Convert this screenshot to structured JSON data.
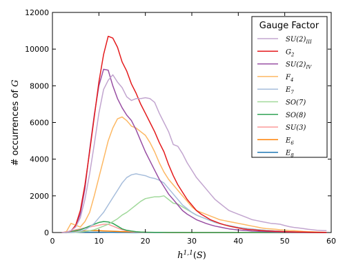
{
  "chart_data": {
    "type": "line",
    "xlabel": "h^{1,1}(S)",
    "ylabel": "# occurrences of G",
    "xlim": [
      0,
      60
    ],
    "ylim": [
      0,
      12000
    ],
    "x_ticks": [
      0,
      10,
      20,
      30,
      40,
      50,
      60
    ],
    "y_ticks": [
      0,
      2000,
      4000,
      6000,
      8000,
      10000,
      12000
    ],
    "grid": false,
    "legend": {
      "title": "Gauge Factor",
      "placement": "top-right"
    },
    "x": [
      2,
      3,
      4,
      5,
      6,
      7,
      8,
      9,
      10,
      11,
      12,
      13,
      14,
      15,
      16,
      17,
      18,
      19,
      20,
      21,
      22,
      23,
      24,
      25,
      26,
      27,
      28,
      29,
      30,
      31,
      32,
      33,
      34,
      35,
      36,
      37,
      38,
      39,
      40,
      41,
      42,
      43,
      44,
      45,
      46,
      47,
      48,
      49,
      50,
      51,
      52,
      53,
      54,
      55,
      56,
      57,
      58,
      59
    ],
    "series": [
      {
        "name": "SU(2)_III",
        "color": "#c2a5cf",
        "values": [
          0,
          20,
          100,
          300,
          800,
          1800,
          3200,
          4800,
          6500,
          7800,
          8300,
          8600,
          8200,
          7900,
          7400,
          7200,
          7300,
          7300,
          7350,
          7300,
          7100,
          6500,
          6000,
          5500,
          4800,
          4700,
          4300,
          3800,
          3400,
          3000,
          2700,
          2400,
          2100,
          1800,
          1600,
          1400,
          1200,
          1100,
          1000,
          900,
          800,
          700,
          650,
          600,
          550,
          500,
          480,
          450,
          380,
          320,
          280,
          250,
          220,
          180,
          150,
          120,
          110,
          100
        ]
      },
      {
        "name": "G_2",
        "color": "#e41a1c",
        "values": [
          0,
          20,
          80,
          400,
          1200,
          2600,
          4400,
          6300,
          8200,
          9700,
          10700,
          10600,
          10100,
          9300,
          8800,
          8100,
          7600,
          7000,
          6500,
          6000,
          5500,
          4900,
          4400,
          3700,
          3100,
          2600,
          2200,
          1800,
          1500,
          1200,
          1000,
          850,
          700,
          600,
          500,
          420,
          350,
          300,
          250,
          200,
          170,
          150,
          130,
          110,
          90,
          80,
          70,
          60,
          50,
          40,
          35,
          30,
          25,
          20,
          15,
          10,
          8,
          5
        ]
      },
      {
        "name": "SU(2)_IV",
        "color": "#984ea3",
        "values": [
          0,
          20,
          100,
          350,
          1000,
          2400,
          4500,
          6400,
          8000,
          8900,
          8850,
          8000,
          7300,
          6800,
          6400,
          6100,
          5600,
          5000,
          4400,
          3900,
          3400,
          2900,
          2500,
          2100,
          1800,
          1500,
          1200,
          1000,
          850,
          700,
          600,
          500,
          420,
          350,
          300,
          250,
          200,
          170,
          140,
          120,
          100,
          80,
          70,
          60,
          50,
          40,
          30,
          25,
          20,
          15,
          10,
          8,
          5,
          4,
          3,
          2,
          1,
          0
        ]
      },
      {
        "name": "F_4",
        "color": "#fdb863",
        "values": [
          0,
          50,
          500,
          400,
          300,
          600,
          1100,
          2000,
          3000,
          4000,
          5000,
          5700,
          6200,
          6300,
          6100,
          5800,
          5700,
          5500,
          5300,
          4900,
          4400,
          3800,
          3300,
          2900,
          2600,
          2300,
          2000,
          1700,
          1400,
          1200,
          1100,
          1000,
          900,
          800,
          700,
          650,
          600,
          550,
          500,
          450,
          400,
          350,
          300,
          250,
          220,
          200,
          180,
          150,
          130,
          110,
          100,
          80,
          60,
          50,
          40,
          30,
          20,
          10
        ]
      },
      {
        "name": "E_7",
        "color": "#a6bddb",
        "values": [
          0,
          0,
          10,
          30,
          80,
          150,
          300,
          500,
          800,
          1100,
          1500,
          1900,
          2300,
          2700,
          3000,
          3150,
          3200,
          3150,
          3100,
          3000,
          2950,
          2850,
          2700,
          2400,
          2100,
          1800,
          1500,
          1300,
          1100,
          950,
          850,
          750,
          650,
          550,
          480,
          420,
          380,
          330,
          280,
          250,
          220,
          190,
          160,
          140,
          120,
          100,
          80,
          70,
          60,
          50,
          40,
          30,
          25,
          20,
          15,
          10,
          8,
          5
        ]
      },
      {
        "name": "SO(7)",
        "color": "#a1d99b",
        "values": [
          0,
          0,
          0,
          10,
          30,
          60,
          100,
          150,
          250,
          350,
          450,
          600,
          750,
          950,
          1100,
          1300,
          1500,
          1700,
          1850,
          1900,
          1950,
          1950,
          2000,
          1800,
          1600,
          1550,
          1400,
          1250,
          1100,
          950,
          850,
          750,
          650,
          550,
          480,
          420,
          380,
          330,
          280,
          250,
          220,
          190,
          160,
          140,
          120,
          100,
          80,
          70,
          60,
          50,
          40,
          30,
          25,
          20,
          15,
          10,
          8,
          5
        ]
      },
      {
        "name": "SO(8)",
        "color": "#31a354",
        "values": [
          0,
          0,
          50,
          100,
          150,
          250,
          350,
          450,
          550,
          600,
          580,
          500,
          350,
          200,
          120,
          80,
          50,
          30,
          20,
          15,
          10,
          8,
          6,
          5,
          4,
          3,
          2,
          1,
          0,
          0,
          0,
          0,
          0,
          0,
          0,
          0,
          0,
          0,
          0,
          0,
          0,
          0,
          0,
          0,
          0,
          0,
          0,
          0,
          0,
          0,
          0,
          0,
          0,
          0,
          0,
          0,
          0,
          0
        ]
      },
      {
        "name": "SU(3)",
        "color": "#fb9a99",
        "values": [
          0,
          10,
          80,
          150,
          200,
          250,
          300,
          350,
          400,
          450,
          450,
          350,
          250,
          150,
          90,
          50,
          30,
          20,
          10,
          5,
          3,
          2,
          1,
          0,
          0,
          0,
          0,
          0,
          0,
          0,
          0,
          0,
          0,
          0,
          0,
          0,
          0,
          0,
          0,
          0,
          0,
          0,
          0,
          0,
          0,
          0,
          0,
          0,
          0,
          0,
          0,
          0,
          0,
          0,
          0,
          0,
          0,
          0
        ]
      },
      {
        "name": "E_6",
        "color": "#ff7f00",
        "values": [
          0,
          10,
          40,
          60,
          80,
          90,
          100,
          100,
          100,
          90,
          80,
          70,
          60,
          50,
          40,
          30,
          25,
          20,
          15,
          10,
          8,
          6,
          4,
          2,
          1,
          0,
          0,
          0,
          0,
          0,
          0,
          0,
          0,
          0,
          0,
          0,
          0,
          0,
          0,
          0,
          0,
          0,
          0,
          0,
          0,
          0,
          0,
          0,
          0,
          0,
          0,
          0,
          0,
          0,
          0,
          0,
          0,
          0
        ]
      },
      {
        "name": "E_8",
        "color": "#1f78b4",
        "values": [
          0,
          0,
          5,
          10,
          15,
          20,
          20,
          20,
          20,
          15,
          10,
          8,
          5,
          3,
          2,
          1,
          0,
          0,
          0,
          0,
          0,
          0,
          0,
          0,
          0,
          0,
          0,
          0,
          0,
          0,
          0,
          0,
          0,
          0,
          0,
          0,
          0,
          0,
          0,
          0,
          0,
          0,
          0,
          0,
          0,
          0,
          0,
          0,
          0,
          0,
          0,
          0,
          0,
          0,
          0,
          0,
          0,
          0
        ]
      }
    ]
  }
}
